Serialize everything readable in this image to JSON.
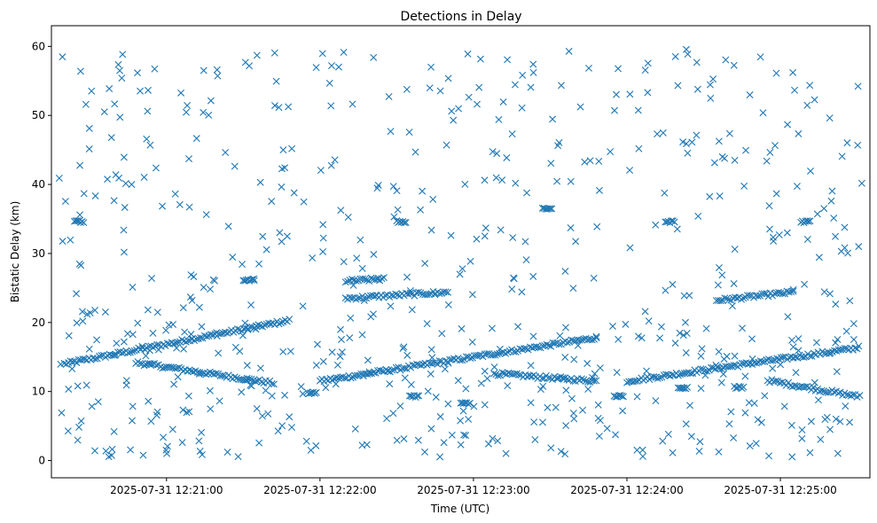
{
  "chart_data": {
    "type": "scatter",
    "title": "Detections in Delay",
    "xlabel": "Time (UTC)",
    "ylabel": "Bistatic Delay (km)",
    "marker": "x",
    "color": "#1f77b4",
    "grid": false,
    "x_type": "time",
    "xlim": [
      "2025-07-31 12:20:15",
      "2025-07-31 12:25:35"
    ],
    "ylim": [
      -2.5,
      63
    ],
    "x_ticks": [
      "2025-07-31 12:21:00",
      "2025-07-31 12:22:00",
      "2025-07-31 12:23:00",
      "2025-07-31 12:24:00",
      "2025-07-31 12:25:00"
    ],
    "y_ticks": [
      0,
      10,
      20,
      30,
      40,
      50,
      60
    ],
    "tracks": [
      {
        "start": "2025-07-31 12:20:20",
        "end": "2025-07-31 12:21:48",
        "y_start": 14.0,
        "y_end": 20.3
      },
      {
        "start": "2025-07-31 12:20:48",
        "end": "2025-07-31 12:21:42",
        "y_start": 14.2,
        "y_end": 11.2
      },
      {
        "start": "2025-07-31 12:22:00",
        "end": "2025-07-31 12:23:48",
        "y_start": 11.5,
        "y_end": 17.8
      },
      {
        "start": "2025-07-31 12:23:08",
        "end": "2025-07-31 12:23:48",
        "y_start": 12.6,
        "y_end": 11.5
      },
      {
        "start": "2025-07-31 12:24:00",
        "end": "2025-07-31 12:25:30",
        "y_start": 11.5,
        "y_end": 16.3
      },
      {
        "start": "2025-07-31 12:24:55",
        "end": "2025-07-31 12:25:30",
        "y_start": 11.6,
        "y_end": 9.3
      },
      {
        "start": "2025-07-31 12:22:10",
        "end": "2025-07-31 12:22:50",
        "y_start": 23.5,
        "y_end": 24.4
      },
      {
        "start": "2025-07-31 12:24:35",
        "end": "2025-07-31 12:25:05",
        "y_start": 23.2,
        "y_end": 24.4
      },
      {
        "start": "2025-07-31 12:22:10",
        "end": "2025-07-31 12:22:25",
        "y_start": 26.0,
        "y_end": 26.3
      }
    ],
    "scattered": {
      "start": "2025-07-31 12:20:18",
      "end": "2025-07-31 12:25:32",
      "ymin": 0.5,
      "ymax": 59.8,
      "count": 650
    },
    "clusters": [
      {
        "t": "2025-07-31 12:20:24",
        "y": 34.6
      },
      {
        "t": "2025-07-31 12:21:30",
        "y": 26.1
      },
      {
        "t": "2025-07-31 12:22:30",
        "y": 34.6
      },
      {
        "t": "2025-07-31 12:23:27",
        "y": 36.5
      },
      {
        "t": "2025-07-31 12:23:55",
        "y": 9.3
      },
      {
        "t": "2025-07-31 12:24:15",
        "y": 34.6
      },
      {
        "t": "2025-07-31 12:24:20",
        "y": 10.5
      },
      {
        "t": "2025-07-31 12:25:08",
        "y": 34.6
      },
      {
        "t": "2025-07-31 12:22:55",
        "y": 8.3
      },
      {
        "t": "2025-07-31 12:21:55",
        "y": 9.8
      },
      {
        "t": "2025-07-31 12:22:35",
        "y": 9.3
      },
      {
        "t": "2025-07-31 12:24:42",
        "y": 10.6
      }
    ]
  }
}
